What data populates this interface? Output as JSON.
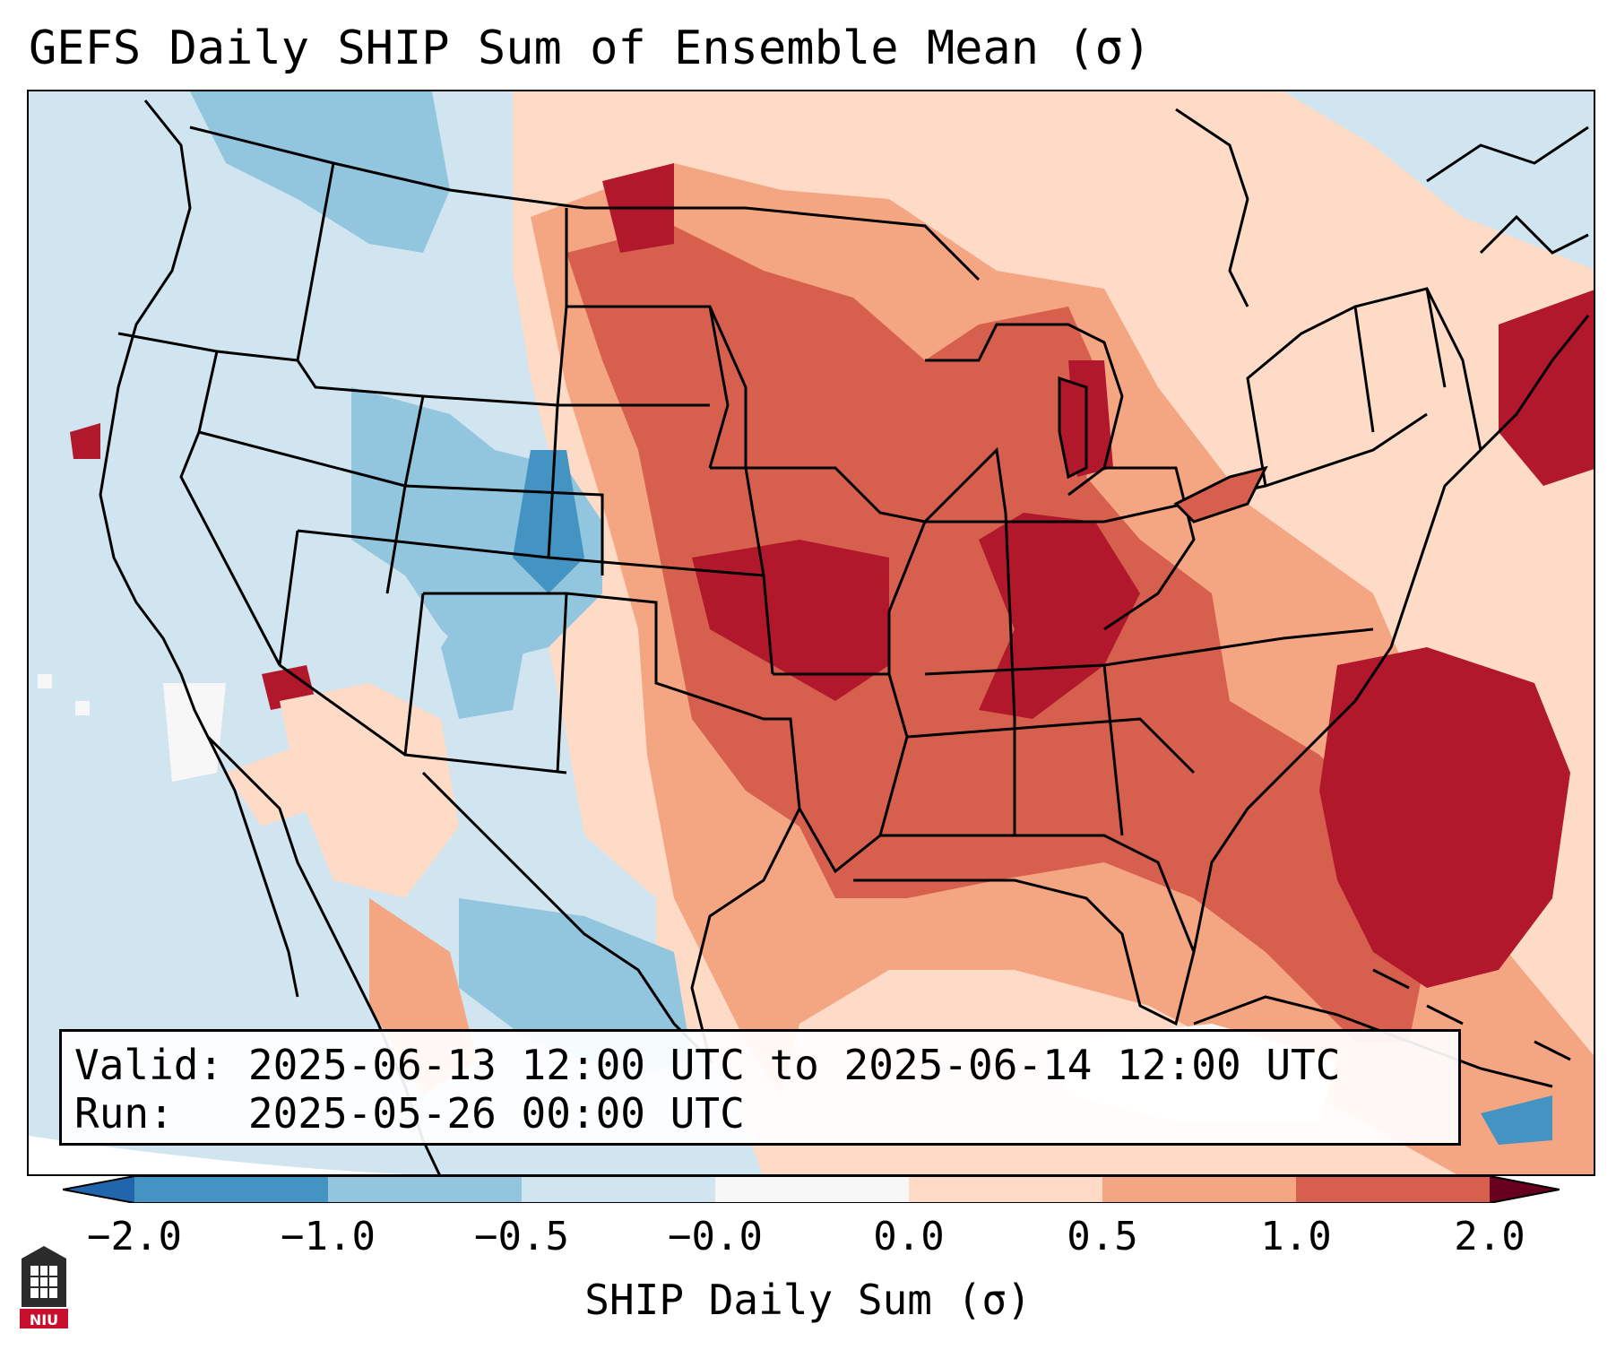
{
  "title": "GEFS Daily SHIP Sum of Ensemble Mean (σ)",
  "info": {
    "valid_label": "Valid:",
    "valid_value": "2025-06-13 12:00 UTC to 2025-06-14 12:00 UTC",
    "run_label": "Run:",
    "run_value": "2025-05-26 00:00 UTC"
  },
  "colorbar": {
    "label": "SHIP Daily Sum (σ)",
    "ticks": [
      "−2.0",
      "−1.0",
      "−0.5",
      "−0.0",
      "0.0",
      "0.5",
      "1.0",
      "2.0"
    ],
    "colors": [
      "#4393c3",
      "#92c5de",
      "#d1e5f0",
      "#f7f7f7",
      "#fddbc7",
      "#f4a582",
      "#d6604d",
      "#b2182b"
    ],
    "under_color": "#2166ac",
    "over_color": "#67001f"
  },
  "logo": {
    "icon": "niu-logo-icon",
    "text": "NIU"
  }
}
